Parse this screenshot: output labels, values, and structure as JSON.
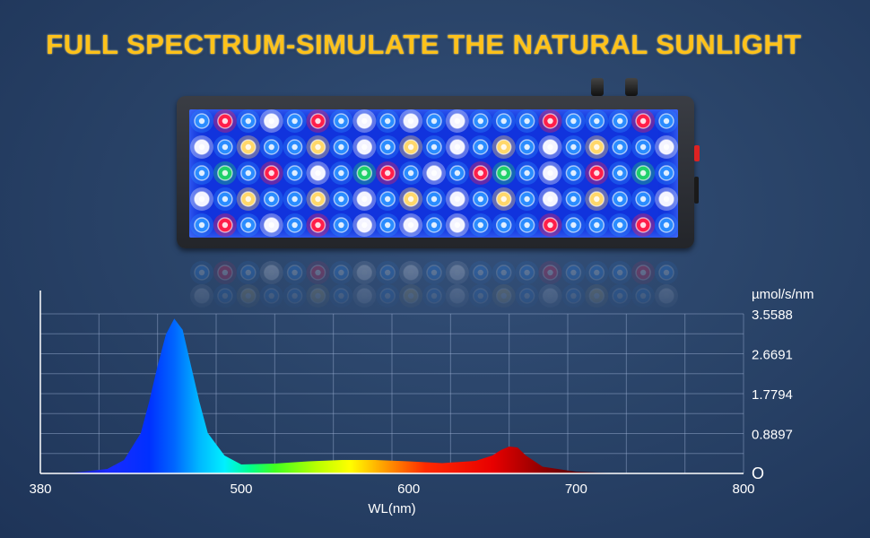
{
  "headline": "FULL SPECTRUM-SIMULATE THE NATURAL SUNLIGHT",
  "colors": {
    "headline": "#ffc21a",
    "background": "#2b4570",
    "led_blue": "#2a8cff",
    "led_red": "#ff1e4a",
    "led_white": "#f4f4ff",
    "led_yellow": "#ffd76a",
    "led_green": "#1fd06b",
    "panel": "#1133dd"
  },
  "lamp": {
    "led_rows": [
      "BRBWBRBWBWBWBBBRBBBRB",
      "WBYBBYBWBYBWBYBWBYBBW",
      "BGBRBWBGRBWBRGBWBRBGB",
      "WBYBBYBWBYBWBYBWBYBBW",
      "BRBWBRBWBWBWBBBRBBBRB"
    ]
  },
  "chart_data": {
    "type": "area",
    "xlabel": "WL(nm)",
    "ylabel": "µmol/s/nm",
    "xlim": [
      380,
      800
    ],
    "ylim": [
      0,
      3.5588
    ],
    "x_ticks": [
      "380",
      "500",
      "600",
      "700",
      "800"
    ],
    "y_ticks": [
      "O",
      "0.8897",
      "1.7794",
      "2.6691",
      "3.5588"
    ],
    "x_tick_values": [
      380,
      500,
      600,
      700,
      800
    ],
    "y_tick_values": [
      0,
      0.8897,
      1.7794,
      2.6691,
      3.5588
    ],
    "grid": true,
    "series": [
      {
        "x": [
          380,
          400,
          420,
          430,
          440,
          445,
          450,
          455,
          460,
          465,
          470,
          475,
          480,
          490,
          500,
          520,
          540,
          560,
          580,
          600,
          620,
          640,
          650,
          655,
          660,
          665,
          670,
          680,
          700,
          720,
          760,
          800
        ],
        "values": [
          0.0,
          0.02,
          0.1,
          0.3,
          0.9,
          1.6,
          2.4,
          3.1,
          3.45,
          3.2,
          2.4,
          1.6,
          0.9,
          0.4,
          0.2,
          0.22,
          0.27,
          0.3,
          0.3,
          0.27,
          0.23,
          0.28,
          0.4,
          0.52,
          0.6,
          0.58,
          0.4,
          0.15,
          0.04,
          0.01,
          0.0,
          0.0
        ]
      }
    ]
  }
}
